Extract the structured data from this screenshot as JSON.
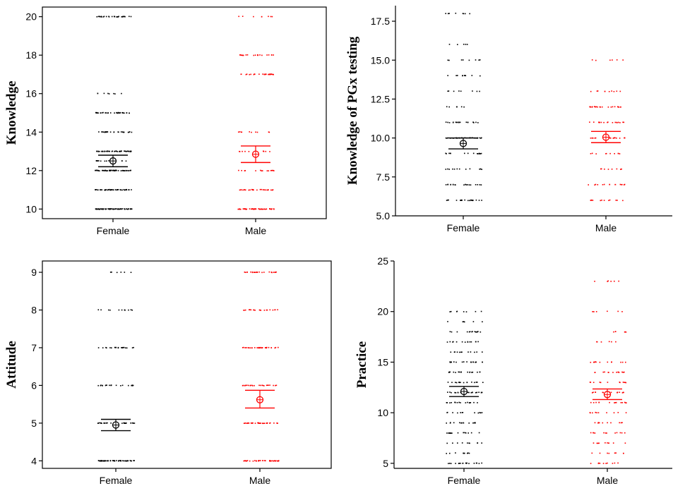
{
  "colors": {
    "female": "#000000",
    "male": "#ff0000"
  },
  "chart_data": [
    {
      "type": "scatter",
      "subtype": "individual value plot with mean and 95% CI",
      "title": "",
      "xlabel": "",
      "ylabel": "Knowledge",
      "categories": [
        "Female",
        "Male"
      ],
      "ylim": [
        9.5,
        20.5
      ],
      "yticks": [
        10,
        12,
        14,
        16,
        18,
        20
      ],
      "grid": false,
      "frame": "box",
      "series": [
        {
          "name": "Female",
          "levels": [
            {
              "y": 10,
              "n": 70
            },
            {
              "y": 11,
              "n": 45
            },
            {
              "y": 12,
              "n": 55
            },
            {
              "y": 12.5,
              "n": 20
            },
            {
              "y": 13,
              "n": 45
            },
            {
              "y": 14,
              "n": 25
            },
            {
              "y": 15,
              "n": 35
            },
            {
              "y": 16,
              "n": 8
            },
            {
              "y": 20,
              "n": 30
            }
          ],
          "mean": 12.5,
          "ci": [
            12.2,
            12.8
          ]
        },
        {
          "name": "Male",
          "levels": [
            {
              "y": 10,
              "n": 50
            },
            {
              "y": 11,
              "n": 25
            },
            {
              "y": 12,
              "n": 15
            },
            {
              "y": 13,
              "n": 10
            },
            {
              "y": 14,
              "n": 10
            },
            {
              "y": 17,
              "n": 25
            },
            {
              "y": 18,
              "n": 20
            },
            {
              "y": 20,
              "n": 8
            }
          ],
          "mean": 12.85,
          "ci": [
            12.42,
            13.28
          ]
        }
      ]
    },
    {
      "type": "scatter",
      "subtype": "individual value plot with mean and 95% CI",
      "title": "",
      "xlabel": "",
      "ylabel": "Knowledge of PGx testing",
      "categories": [
        "Female",
        "Male"
      ],
      "ylim": [
        5.0,
        18.5
      ],
      "yticks": [
        "5.0",
        "7.5",
        "10.0",
        "12.5",
        "15.0",
        "17.5"
      ],
      "grid": false,
      "frame": "L",
      "series": [
        {
          "name": "Female",
          "levels": [
            {
              "y": 6,
              "n": 25
            },
            {
              "y": 7,
              "n": 20
            },
            {
              "y": 8,
              "n": 12
            },
            {
              "y": 9,
              "n": 15
            },
            {
              "y": 10,
              "n": 25
            },
            {
              "y": 11,
              "n": 20
            },
            {
              "y": 12,
              "n": 6
            },
            {
              "y": 13,
              "n": 8
            },
            {
              "y": 14,
              "n": 10
            },
            {
              "y": 15,
              "n": 8
            },
            {
              "y": 16,
              "n": 5
            },
            {
              "y": 18,
              "n": 8
            }
          ],
          "mean": 9.65,
          "ci": [
            9.3,
            10.0
          ]
        },
        {
          "name": "Male",
          "levels": [
            {
              "y": 6,
              "n": 12
            },
            {
              "y": 7,
              "n": 15
            },
            {
              "y": 8,
              "n": 8
            },
            {
              "y": 9,
              "n": 10
            },
            {
              "y": 10,
              "n": 20
            },
            {
              "y": 11,
              "n": 18
            },
            {
              "y": 12,
              "n": 22
            },
            {
              "y": 13,
              "n": 10
            },
            {
              "y": 15,
              "n": 6
            }
          ],
          "mean": 10.05,
          "ci": [
            9.7,
            10.42
          ]
        }
      ]
    },
    {
      "type": "scatter",
      "subtype": "individual value plot with mean and 95% CI",
      "title": "",
      "xlabel": "",
      "ylabel": "Attitude",
      "categories": [
        "Female",
        "Male"
      ],
      "ylim": [
        3.8,
        9.3
      ],
      "yticks": [
        4,
        5,
        6,
        7,
        8,
        9
      ],
      "grid": false,
      "frame": "box",
      "series": [
        {
          "name": "Female",
          "levels": [
            {
              "y": 4,
              "n": 55
            },
            {
              "y": 5,
              "n": 30
            },
            {
              "y": 6,
              "n": 20
            },
            {
              "y": 7,
              "n": 22
            },
            {
              "y": 8,
              "n": 12
            },
            {
              "y": 9,
              "n": 6
            }
          ],
          "mean": 4.95,
          "ci": [
            4.8,
            5.1
          ]
        },
        {
          "name": "Male",
          "levels": [
            {
              "y": 4,
              "n": 40
            },
            {
              "y": 5,
              "n": 35
            },
            {
              "y": 6,
              "n": 25
            },
            {
              "y": 7,
              "n": 30
            },
            {
              "y": 8,
              "n": 20
            },
            {
              "y": 9,
              "n": 25
            }
          ],
          "mean": 5.62,
          "ci": [
            5.4,
            5.87
          ]
        }
      ]
    },
    {
      "type": "scatter",
      "subtype": "individual value plot with mean and 95% CI",
      "title": "",
      "xlabel": "",
      "ylabel": "Practice",
      "categories": [
        "Female",
        "Male"
      ],
      "ylim": [
        4.5,
        25
      ],
      "yticks": [
        5,
        10,
        15,
        20,
        25
      ],
      "grid": false,
      "frame": "L",
      "series": [
        {
          "name": "Female",
          "levels": [
            {
              "y": 5,
              "n": 18
            },
            {
              "y": 6,
              "n": 10
            },
            {
              "y": 7,
              "n": 10
            },
            {
              "y": 8,
              "n": 15
            },
            {
              "y": 9,
              "n": 14
            },
            {
              "y": 10,
              "n": 12
            },
            {
              "y": 11,
              "n": 18
            },
            {
              "y": 12,
              "n": 20
            },
            {
              "y": 13,
              "n": 16
            },
            {
              "y": 14,
              "n": 18
            },
            {
              "y": 15,
              "n": 20
            },
            {
              "y": 16,
              "n": 12
            },
            {
              "y": 17,
              "n": 14
            },
            {
              "y": 18,
              "n": 14
            },
            {
              "y": 19,
              "n": 6
            },
            {
              "y": 20,
              "n": 8
            }
          ],
          "mean": 12.1,
          "ci": [
            11.6,
            12.6
          ]
        },
        {
          "name": "Male",
          "levels": [
            {
              "y": 5,
              "n": 10
            },
            {
              "y": 6,
              "n": 8
            },
            {
              "y": 7,
              "n": 10
            },
            {
              "y": 8,
              "n": 12
            },
            {
              "y": 9,
              "n": 10
            },
            {
              "y": 10,
              "n": 10
            },
            {
              "y": 11,
              "n": 14
            },
            {
              "y": 12,
              "n": 16
            },
            {
              "y": 13,
              "n": 12
            },
            {
              "y": 14,
              "n": 14
            },
            {
              "y": 15,
              "n": 12
            },
            {
              "y": 17,
              "n": 6
            },
            {
              "y": 18,
              "n": 6
            },
            {
              "y": 20,
              "n": 6
            },
            {
              "y": 23,
              "n": 6
            }
          ],
          "mean": 11.8,
          "ci": [
            11.3,
            12.35
          ]
        }
      ]
    }
  ]
}
